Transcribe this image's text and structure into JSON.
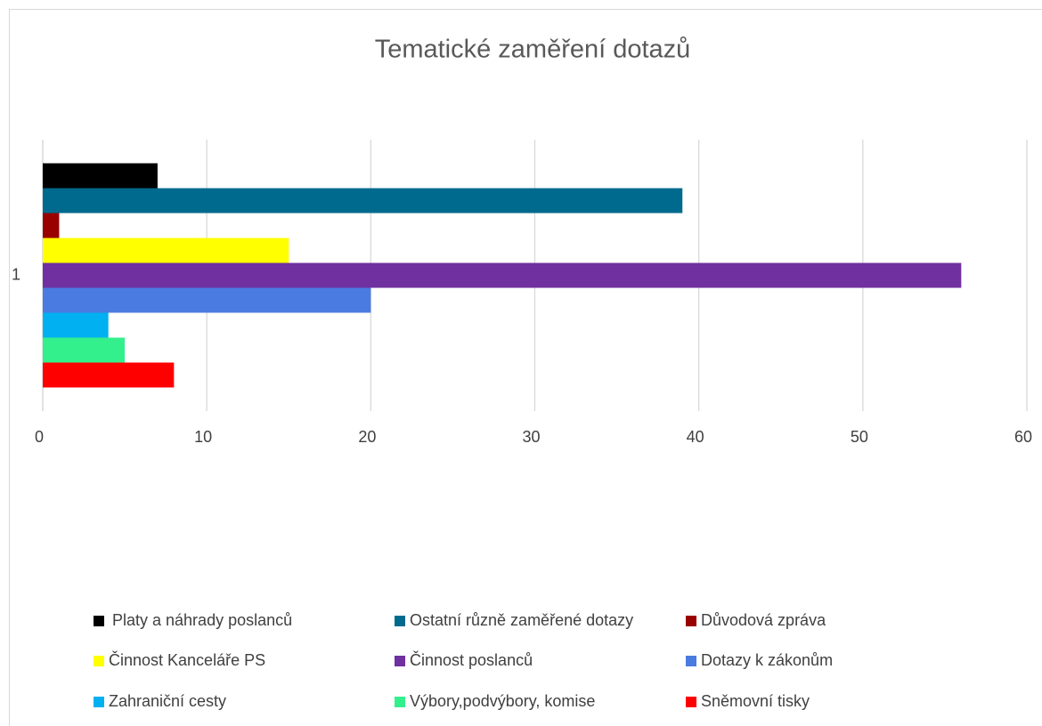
{
  "chart_data": {
    "type": "bar",
    "orientation": "horizontal",
    "title": "Tematické zaměření dotazů",
    "categories": [
      "1"
    ],
    "series": [
      {
        "name": "Platy a náhrady poslanců",
        "color": "#000000",
        "values": [
          7
        ]
      },
      {
        "name": "Ostatní různě zaměřené dotazy",
        "color": "#006a8e",
        "values": [
          39
        ]
      },
      {
        "name": "Důvodová zpráva",
        "color": "#990000",
        "values": [
          1
        ]
      },
      {
        "name": "Činnost Kanceláře PS",
        "color": "#ffff00",
        "values": [
          15
        ]
      },
      {
        "name": "Činnost poslanců",
        "color": "#7030a0",
        "values": [
          56
        ]
      },
      {
        "name": "Dotazy k zákonům",
        "color": "#4a7be0",
        "values": [
          20
        ]
      },
      {
        "name": "Zahraniční cesty",
        "color": "#00b0f0",
        "values": [
          4
        ]
      },
      {
        "name": "Výbory,podvýbory, komise",
        "color": "#33f08c",
        "values": [
          5
        ]
      },
      {
        "name": "Sněmovní tisky",
        "color": "#ff0000",
        "values": [
          8
        ]
      }
    ],
    "xlim": [
      0,
      60
    ],
    "xticks": [
      0,
      10,
      20,
      30,
      40,
      50,
      60
    ],
    "grid": true,
    "legend": "bottom"
  }
}
